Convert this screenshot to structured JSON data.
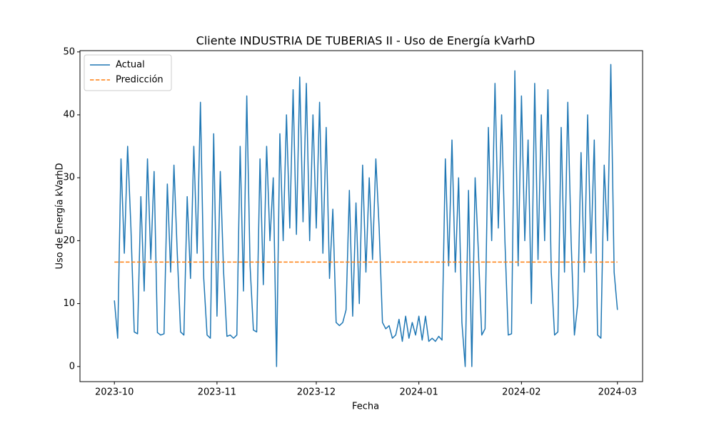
{
  "chart_data": {
    "type": "line",
    "title": "Cliente INDUSTRIA DE TUBERIAS II - Uso de Energía kVarhD",
    "x_label": "Fecha",
    "y_label": "Uso de Energía kVarhD",
    "xlim": [
      -10.4,
      159.6
    ],
    "xticks": [
      {
        "value": 0,
        "label": "2023-10"
      },
      {
        "value": 31,
        "label": "2023-11"
      },
      {
        "value": 61,
        "label": "2023-12"
      },
      {
        "value": 92,
        "label": "2024-01"
      },
      {
        "value": 123,
        "label": "2024-02"
      },
      {
        "value": 152,
        "label": "2024-03"
      }
    ],
    "ylim": [
      -2.4,
      50.2
    ],
    "yticks": [
      0,
      10,
      20,
      30,
      40,
      50
    ],
    "grid": false,
    "legend": "upper left",
    "series": [
      {
        "name": "Actual",
        "color": "#1f77b4",
        "dash": "solid",
        "x": [
          0,
          1,
          2,
          3,
          4,
          5,
          6,
          7,
          8,
          9,
          10,
          11,
          12,
          13,
          14,
          15,
          16,
          17,
          18,
          19,
          20,
          21,
          22,
          23,
          24,
          25,
          26,
          27,
          28,
          29,
          30,
          31,
          32,
          33,
          34,
          35,
          36,
          37,
          38,
          39,
          40,
          41,
          42,
          43,
          44,
          45,
          46,
          47,
          48,
          49,
          50,
          51,
          52,
          53,
          54,
          55,
          56,
          57,
          58,
          59,
          60,
          61,
          62,
          63,
          64,
          65,
          66,
          67,
          68,
          69,
          70,
          71,
          72,
          73,
          74,
          75,
          76,
          77,
          78,
          79,
          80,
          81,
          82,
          83,
          84,
          85,
          86,
          87,
          88,
          89,
          90,
          91,
          92,
          93,
          94,
          95,
          96,
          97,
          98,
          99,
          100,
          101,
          102,
          103,
          104,
          105,
          106,
          107,
          108,
          109,
          110,
          111,
          112,
          113,
          114,
          115,
          116,
          117,
          118,
          119,
          120,
          121,
          122,
          123,
          124,
          125,
          126,
          127,
          128,
          129,
          130,
          131,
          132,
          133,
          134,
          135,
          136,
          137,
          138,
          139,
          140,
          141,
          142,
          143,
          144,
          145,
          146,
          147,
          148,
          149,
          150,
          151,
          152
        ],
        "values": [
          10.5,
          4.5,
          33,
          18,
          35,
          22,
          5.5,
          5.2,
          27,
          12,
          33,
          17,
          31,
          5.4,
          5,
          5.2,
          29,
          15,
          32,
          18,
          5.5,
          5,
          27,
          14,
          35,
          18,
          42,
          14,
          5,
          4.5,
          37,
          8,
          31,
          15,
          4.8,
          5,
          4.5,
          5,
          35,
          12,
          43,
          16,
          5.8,
          5.5,
          33,
          13,
          35,
          20,
          30,
          0,
          37,
          20,
          40,
          22,
          44,
          21,
          46,
          23,
          45,
          20,
          40,
          22,
          42,
          18,
          38,
          14,
          25,
          7,
          6.5,
          7,
          9,
          28,
          8,
          26,
          10,
          32,
          15,
          30,
          17,
          33,
          22,
          7,
          6,
          6.5,
          4.5,
          5,
          7.5,
          4,
          8,
          4.5,
          7,
          5,
          8,
          4.2,
          8,
          4,
          4.5,
          4,
          4.8,
          4.2,
          33,
          16,
          36,
          15,
          30,
          7,
          0,
          28,
          0,
          30,
          18,
          5,
          6,
          38,
          20,
          45,
          22,
          40,
          20,
          5,
          5.2,
          47,
          16,
          43,
          20,
          36,
          10,
          45,
          17,
          40,
          20,
          44,
          15,
          5,
          5.5,
          38,
          15,
          42,
          20,
          5,
          10,
          34,
          15,
          40,
          18,
          36,
          5,
          4.5,
          32,
          20,
          48,
          15,
          9
        ]
      },
      {
        "name": "Predicción",
        "color": "#ff7f0e",
        "dash": "dashed",
        "x": [
          0,
          152
        ],
        "values": [
          16.6,
          16.6
        ]
      }
    ]
  }
}
